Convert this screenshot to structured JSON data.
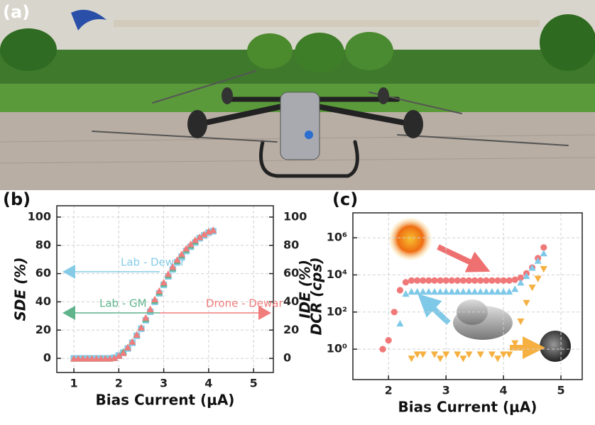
{
  "panel_labels": [
    "(a)",
    "(b)",
    "(c)"
  ],
  "chart_data": [
    {
      "type": "scatter",
      "xlabel": "Bias Current (μA)",
      "ylabel": "SDE (%)",
      "y2label": "IDE (%)",
      "xlim": [
        0.62,
        5.44
      ],
      "xticks": [
        1,
        2,
        3,
        4,
        5
      ],
      "ylim": [
        -10,
        108
      ],
      "yticks": [
        0,
        20,
        40,
        60,
        80,
        100
      ],
      "y2lim": [
        -10,
        108
      ],
      "y2ticks": [
        0,
        20,
        40,
        60,
        80,
        100
      ],
      "grid": true,
      "x": [
        1.0,
        1.1,
        1.2,
        1.3,
        1.4,
        1.5,
        1.6,
        1.7,
        1.8,
        1.9,
        2.0,
        2.1,
        2.2,
        2.3,
        2.4,
        2.5,
        2.6,
        2.7,
        2.8,
        2.9,
        3.0,
        3.1,
        3.2,
        3.3,
        3.4,
        3.5,
        3.6,
        3.7,
        3.8,
        3.9,
        4.0,
        4.1
      ],
      "series": [
        {
          "name": "Lab - Dewar",
          "color": "#86cbe6",
          "marker": "square",
          "values": [
            0,
            0,
            0,
            0,
            0,
            0,
            0,
            0,
            0,
            0.5,
            2,
            4,
            7,
            11,
            16,
            21,
            27,
            33,
            40,
            46,
            52,
            58,
            63,
            68,
            72,
            76,
            79,
            82,
            85,
            87,
            89,
            90
          ]
        },
        {
          "name": "Lab - GM",
          "color": "#5fb48c",
          "marker": "triangle",
          "values": [
            0,
            0,
            0,
            0,
            0,
            0,
            0,
            0,
            0,
            0.5,
            2,
            5,
            8,
            12,
            17,
            22,
            28,
            35,
            41,
            47,
            53,
            59,
            64,
            69,
            73,
            77,
            80,
            83,
            86,
            88,
            90,
            91
          ]
        },
        {
          "name": "Drone - Dewar",
          "color": "#f07c7c",
          "marker": "triangle",
          "values": [
            0,
            0,
            0,
            0,
            0,
            0,
            0,
            0,
            0,
            0.5,
            2,
            4,
            8,
            12,
            17,
            22,
            29,
            35,
            42,
            48,
            54,
            60,
            65,
            70,
            74,
            78,
            81,
            84,
            86,
            88,
            90,
            91
          ]
        }
      ]
    },
    {
      "type": "scatter",
      "xlabel": "Bias Current (μA)",
      "ylabel": "DCR (cps)",
      "xlim": [
        1.38,
        5.37
      ],
      "xticks": [
        2,
        3,
        4,
        5
      ],
      "ylim": [
        0.023,
        22000000
      ],
      "log_y": true,
      "yticks": [
        {
          "value": 1,
          "label": "10⁰"
        },
        {
          "value": 100,
          "label": "10²"
        },
        {
          "value": 10000,
          "label": "10⁴"
        },
        {
          "value": 1000000,
          "label": "10⁶"
        }
      ],
      "grid": true,
      "series": [
        {
          "color": "#f07878",
          "marker": "circle",
          "x": [
            1.9,
            2.0,
            2.1,
            2.2,
            2.3,
            2.4,
            2.5,
            2.6,
            2.7,
            2.8,
            2.9,
            3.0,
            3.1,
            3.2,
            3.3,
            3.4,
            3.5,
            3.6,
            3.7,
            3.8,
            3.9,
            4.0,
            4.1,
            4.2,
            4.3,
            4.4,
            4.5,
            4.6,
            4.7
          ],
          "values": [
            1,
            3,
            100,
            1500,
            4000,
            5000,
            5000,
            5000,
            5000,
            5000,
            5000,
            5000,
            5000,
            5000,
            5000,
            5000,
            5000,
            5000,
            5000,
            5000,
            5000,
            5000,
            5000,
            5500,
            7000,
            12000,
            25000,
            80000,
            300000
          ]
        },
        {
          "color": "#7ec8e8",
          "marker": "triangle",
          "x": [
            2.2,
            2.3,
            2.4,
            2.5,
            2.6,
            2.7,
            2.8,
            2.9,
            3.0,
            3.1,
            3.2,
            3.3,
            3.4,
            3.5,
            3.6,
            3.7,
            3.8,
            3.9,
            4.0,
            4.1,
            4.2,
            4.3,
            4.4,
            4.5,
            4.6,
            4.7
          ],
          "values": [
            25,
            1000,
            1300,
            1300,
            1300,
            1300,
            1300,
            1300,
            1300,
            1300,
            1300,
            1300,
            1300,
            1300,
            1300,
            1300,
            1300,
            1300,
            1300,
            1300,
            1800,
            4000,
            9000,
            25000,
            60000,
            150000
          ]
        },
        {
          "color": "#f5b041",
          "marker": "triangle-down",
          "x": [
            2.4,
            2.5,
            2.6,
            2.8,
            2.9,
            3.0,
            3.2,
            3.3,
            3.4,
            3.6,
            3.8,
            3.9,
            4.0,
            4.1,
            4.2,
            4.3,
            4.4,
            4.5,
            4.6,
            4.7
          ],
          "values": [
            0.3,
            0.5,
            0.5,
            0.5,
            0.3,
            0.5,
            0.5,
            0.3,
            0.5,
            0.5,
            0.5,
            0.3,
            0.5,
            0.5,
            2,
            30,
            300,
            2000,
            6000,
            20000
          ]
        }
      ]
    }
  ]
}
